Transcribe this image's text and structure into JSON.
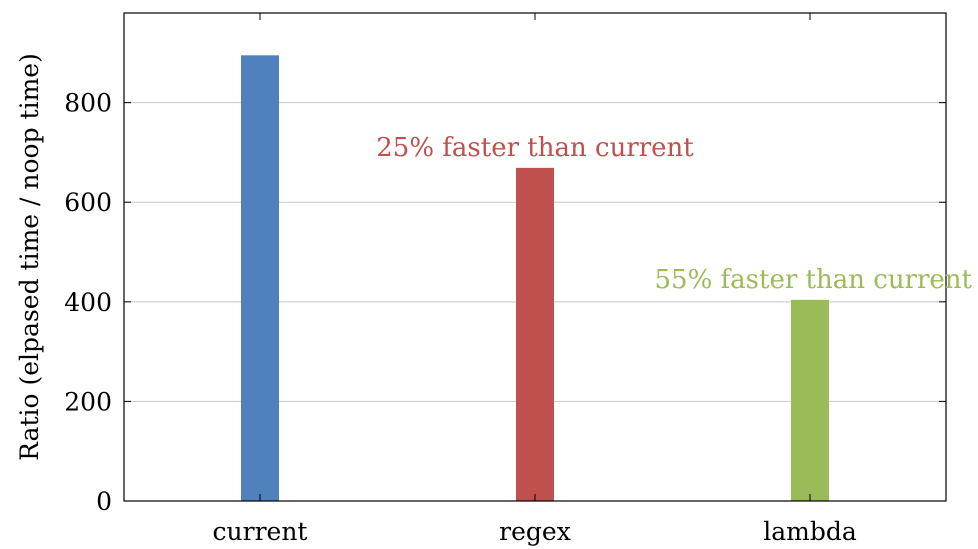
{
  "chart_data": {
    "type": "bar",
    "categories": [
      "current",
      "regex",
      "lambda"
    ],
    "values": [
      895,
      669,
      404
    ],
    "colors": [
      "#4f81bd",
      "#c0504d",
      "#9bbb59"
    ],
    "ylabel": "Ratio (elpased time / noop time)",
    "xlabel": "",
    "ylim": [
      0,
      980
    ],
    "yticks": [
      0,
      200,
      400,
      600,
      800
    ],
    "grid": true,
    "annotations": [
      {
        "category": "regex",
        "text": "25% faster than current",
        "color": "#c0504d"
      },
      {
        "category": "lambda",
        "text": "55% faster than current",
        "color": "#9bbb59"
      }
    ]
  }
}
